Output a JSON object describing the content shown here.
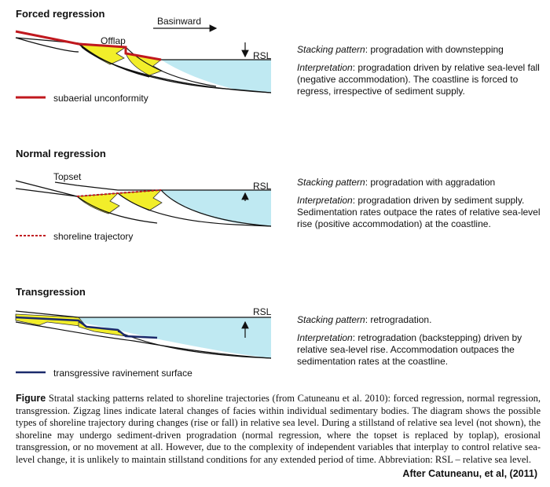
{
  "sections": [
    {
      "title": "Forced regression",
      "diagram_labels": [
        "Basinward",
        "Offlap",
        "RSL"
      ],
      "legend": "subaerial unconformity",
      "stacking_label": "Stacking pattern",
      "stacking_value": ": progradation with downstepping",
      "interp_label": "Interpretation",
      "interp_value": ": progradation driven by relative sea-level fall (negative accommodation). The coastline is forced to regress, irrespective of sediment supply."
    },
    {
      "title": "Normal regression",
      "diagram_labels": [
        "Topset",
        "RSL"
      ],
      "legend": "shoreline trajectory",
      "stacking_label": "Stacking pattern",
      "stacking_value": ": progradation with aggradation",
      "interp_label": "Interpretation",
      "interp_value": ": progradation driven by sediment supply. Sedimentation rates outpace the rates of relative sea-level rise (positive accommodation) at the coastline."
    },
    {
      "title": "Transgression",
      "diagram_labels": [
        "RSL"
      ],
      "legend": "transgressive ravinement surface",
      "stacking_label": "Stacking pattern",
      "stacking_value": ": retrogradation.",
      "interp_label": "Interpretation",
      "interp_value": ": retrogradation (backstepping) driven by relative sea-level rise. Accommodation outpaces the sedimentation rates at the coastline."
    }
  ],
  "caption": {
    "label": "Figure",
    "text": " Stratal stacking patterns related to shoreline trajectories (from Catuneanu et al. 2010): forced regression, normal regression, transgression. Zigzag lines indicate lateral changes of facies within individual sedimentary bodies. The diagram shows the possible types of shoreline trajectory during changes (rise or fall) in relative sea level. During a stillstand of relative sea level (not shown), the shoreline may undergo sediment-driven progradation (normal regression, where the topset is replaced by toplap), erosional transgression, or no movement at all. However, due to the complexity of independent variables that interplay to control relative sea-level change, it is unlikely to maintain stillstand conditions for any extended period of time. Abbreviation: RSL – relative sea level."
  },
  "credit": "After Catuneanu, et al, (2011)",
  "colors": {
    "water": "#bfe9f2",
    "sediment": "#f2ee2a",
    "unconformity": "#c0181e",
    "trajectory": "#c0181e",
    "ravinement": "#1b2a6b"
  }
}
